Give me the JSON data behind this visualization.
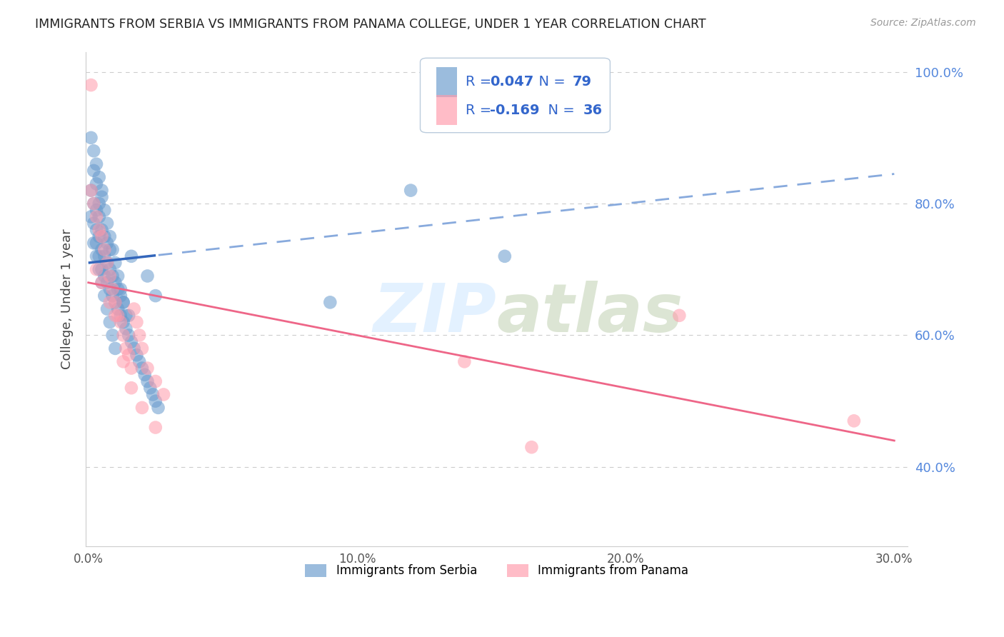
{
  "title": "IMMIGRANTS FROM SERBIA VS IMMIGRANTS FROM PANAMA COLLEGE, UNDER 1 YEAR CORRELATION CHART",
  "source": "Source: ZipAtlas.com",
  "ylabel": "College, Under 1 year",
  "xlim": [
    -0.001,
    0.305
  ],
  "ylim": [
    0.28,
    1.03
  ],
  "xticks": [
    0.0,
    0.05,
    0.1,
    0.15,
    0.2,
    0.25,
    0.3
  ],
  "xtick_labels": [
    "0.0%",
    "",
    "10.0%",
    "",
    "20.0%",
    "",
    "30.0%"
  ],
  "yticks_right": [
    0.4,
    0.6,
    0.8,
    1.0
  ],
  "ytick_labels_right": [
    "40.0%",
    "60.0%",
    "80.0%",
    "100.0%"
  ],
  "serbia_color": "#6699cc",
  "panama_color": "#ff99aa",
  "serbia_line_color": "#3366bb",
  "serbia_dash_color": "#88aadd",
  "panama_line_color": "#ee6688",
  "legend_text_color": "#3366cc",
  "legend_border_color": "#bbccdd",
  "watermark_color": "#ddeeff",
  "background_color": "#ffffff",
  "grid_color": "#cccccc",
  "serbia_legend_label": "Immigrants from Serbia",
  "panama_legend_label": "Immigrants from Panama",
  "serbia_x": [
    0.001,
    0.001,
    0.002,
    0.002,
    0.002,
    0.003,
    0.003,
    0.003,
    0.003,
    0.004,
    0.004,
    0.004,
    0.004,
    0.005,
    0.005,
    0.005,
    0.005,
    0.006,
    0.006,
    0.006,
    0.007,
    0.007,
    0.007,
    0.008,
    0.008,
    0.008,
    0.009,
    0.009,
    0.01,
    0.01,
    0.011,
    0.011,
    0.012,
    0.012,
    0.013,
    0.013,
    0.014,
    0.015,
    0.015,
    0.016,
    0.017,
    0.018,
    0.019,
    0.02,
    0.021,
    0.022,
    0.023,
    0.024,
    0.025,
    0.026,
    0.001,
    0.002,
    0.003,
    0.004,
    0.005,
    0.006,
    0.007,
    0.008,
    0.009,
    0.01,
    0.011,
    0.012,
    0.013,
    0.014,
    0.002,
    0.003,
    0.004,
    0.005,
    0.006,
    0.007,
    0.008,
    0.009,
    0.01,
    0.016,
    0.022,
    0.025,
    0.12,
    0.155,
    0.09
  ],
  "serbia_y": [
    0.78,
    0.82,
    0.77,
    0.8,
    0.85,
    0.74,
    0.76,
    0.79,
    0.83,
    0.72,
    0.75,
    0.78,
    0.8,
    0.7,
    0.73,
    0.76,
    0.82,
    0.69,
    0.72,
    0.75,
    0.68,
    0.71,
    0.74,
    0.67,
    0.7,
    0.73,
    0.66,
    0.69,
    0.65,
    0.68,
    0.64,
    0.67,
    0.63,
    0.66,
    0.62,
    0.65,
    0.61,
    0.6,
    0.63,
    0.59,
    0.58,
    0.57,
    0.56,
    0.55,
    0.54,
    0.53,
    0.52,
    0.51,
    0.5,
    0.49,
    0.9,
    0.88,
    0.86,
    0.84,
    0.81,
    0.79,
    0.77,
    0.75,
    0.73,
    0.71,
    0.69,
    0.67,
    0.65,
    0.63,
    0.74,
    0.72,
    0.7,
    0.68,
    0.66,
    0.64,
    0.62,
    0.6,
    0.58,
    0.72,
    0.69,
    0.66,
    0.82,
    0.72,
    0.65
  ],
  "panama_x": [
    0.001,
    0.001,
    0.002,
    0.003,
    0.004,
    0.005,
    0.006,
    0.007,
    0.008,
    0.009,
    0.01,
    0.011,
    0.012,
    0.013,
    0.014,
    0.015,
    0.016,
    0.017,
    0.018,
    0.019,
    0.02,
    0.022,
    0.025,
    0.028,
    0.003,
    0.005,
    0.008,
    0.01,
    0.013,
    0.016,
    0.02,
    0.025,
    0.14,
    0.165,
    0.22,
    0.285
  ],
  "panama_y": [
    0.98,
    0.82,
    0.8,
    0.78,
    0.76,
    0.75,
    0.73,
    0.71,
    0.69,
    0.67,
    0.65,
    0.63,
    0.62,
    0.6,
    0.58,
    0.57,
    0.55,
    0.64,
    0.62,
    0.6,
    0.58,
    0.55,
    0.53,
    0.51,
    0.7,
    0.68,
    0.65,
    0.63,
    0.56,
    0.52,
    0.49,
    0.46,
    0.56,
    0.43,
    0.63,
    0.47
  ],
  "serbia_trend_intercept": 0.71,
  "serbia_trend_slope": 0.45,
  "panama_trend_intercept": 0.68,
  "panama_trend_slope": -0.8
}
